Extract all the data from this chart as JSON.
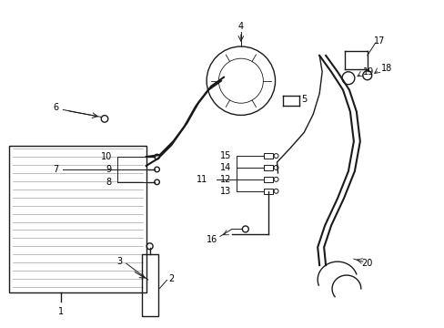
{
  "background_color": "#ffffff",
  "line_color": "#1a1a1a",
  "text_color": "#000000",
  "figsize": [
    4.89,
    3.6
  ],
  "dpi": 100
}
